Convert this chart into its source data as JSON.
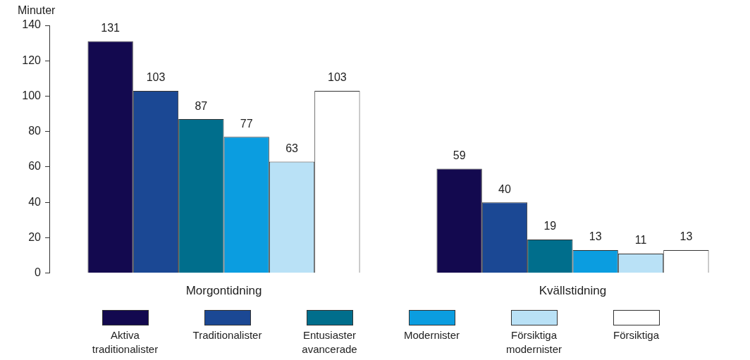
{
  "chart_data": {
    "type": "bar",
    "ylabel": "Minuter",
    "categories": [
      "Morgontidning",
      "Kvällstidning"
    ],
    "series": [
      {
        "name": "Aktiva traditionalister",
        "color": "#13094f",
        "values": [
          131,
          59
        ]
      },
      {
        "name": "Traditionalister",
        "color": "#1b4894",
        "values": [
          103,
          40
        ]
      },
      {
        "name": "Entusiaster avancerade",
        "color": "#006e8c",
        "values": [
          87,
          19
        ]
      },
      {
        "name": "Modernister",
        "color": "#0b9de0",
        "values": [
          77,
          13
        ]
      },
      {
        "name": "Försiktiga modernister",
        "color": "#b9e1f6",
        "values": [
          63,
          11
        ]
      },
      {
        "name": "Försiktiga",
        "color": "#ffffff",
        "values": [
          103,
          13
        ]
      }
    ],
    "ylim": [
      0,
      140
    ],
    "yticks": [
      0,
      20,
      40,
      60,
      80,
      100,
      120,
      140
    ],
    "grid": false,
    "legend": "bottom",
    "data_labels": true
  }
}
